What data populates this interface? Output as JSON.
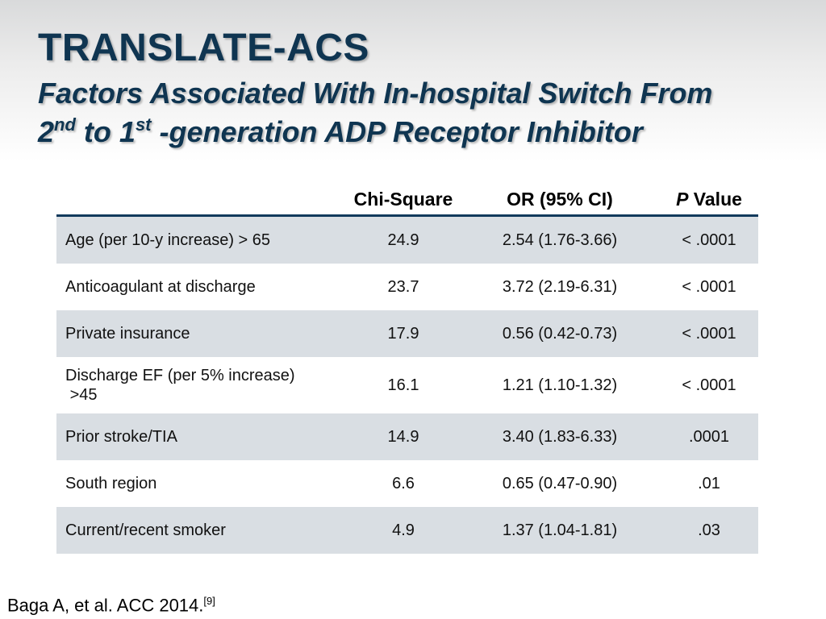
{
  "slide": {
    "title": "TRANSLATE-ACS",
    "subtitle": {
      "line1": "Factors Associated With In-hospital Switch From",
      "n1": "2",
      "sup1": "nd",
      "mid": " to 1",
      "sup2": "st",
      "rest": " -generation ADP Receptor Inhibitor"
    }
  },
  "table": {
    "headers": {
      "chi": "Chi-Square",
      "or": "OR (95% CI)",
      "p_italic": "P",
      "p_rest": " Value"
    },
    "rows": [
      {
        "factor": "Age (per 10-y increase) > 65",
        "chi": "24.9",
        "or": "2.54 (1.76-3.66)",
        "p": "< .0001"
      },
      {
        "factor": "Anticoagulant at discharge",
        "chi": "23.7",
        "or": "3.72 (2.19-6.31)",
        "p": "< .0001"
      },
      {
        "factor": "Private insurance",
        "chi": "17.9",
        "or": "0.56 (0.42-0.73)",
        "p": "< .0001"
      },
      {
        "factor": "Discharge EF (per 5% increase) >45",
        "factor_line1": "Discharge EF (per 5% increase)",
        "factor_line2": ">45",
        "chi": "16.1",
        "or": "1.21 (1.10-1.32)",
        "p": "< .0001"
      },
      {
        "factor": "Prior stroke/TIA",
        "chi": "14.9",
        "or": "3.40 (1.83-6.33)",
        "p": ".0001"
      },
      {
        "factor": "South region",
        "chi": "6.6",
        "or": "0.65 (0.47-0.90)",
        "p": ".01"
      },
      {
        "factor": "Current/recent smoker",
        "chi": "4.9",
        "or": "1.37 (1.04-1.81)",
        "p": ".03"
      }
    ]
  },
  "citation": {
    "text": "Baga A, et al. ACC 2014.",
    "ref": "[9]"
  },
  "colors": {
    "title": "#0f3551",
    "header_rule": "#123a5c",
    "row_shade": "#d9dee3"
  }
}
